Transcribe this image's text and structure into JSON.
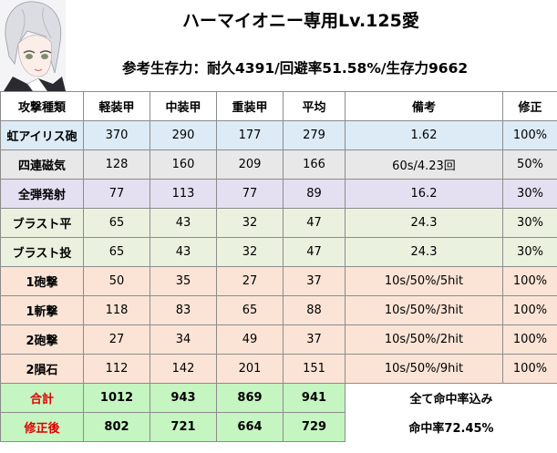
{
  "title": "ハーマイオニー専用Lv.125愛",
  "subtitle": "参考生存力：耐久4391/回避率51.58%/生存力9662",
  "headers": [
    "攻撃種類",
    "軽装甲",
    "中装甲",
    "重装甲",
    "平均",
    "備考",
    "修正"
  ],
  "rows": [
    {
      "name": "虹アイリス砲",
      "light": "370",
      "medium": "290",
      "heavy": "177",
      "avg": "279",
      "note": "1.62",
      "mod": "100%"
    },
    {
      "name": "四連磁気",
      "light": "128",
      "medium": "160",
      "heavy": "209",
      "avg": "166",
      "note": "60s/4.23回",
      "mod": "50%"
    },
    {
      "name": "全弾発射",
      "light": "77",
      "medium": "113",
      "heavy": "77",
      "avg": "89",
      "note": "16.2",
      "mod": "30%"
    },
    {
      "name": "ブラスト平",
      "light": "65",
      "medium": "43",
      "heavy": "32",
      "avg": "47",
      "note": "24.3",
      "mod": "30%"
    },
    {
      "name": "ブラスト投",
      "light": "65",
      "medium": "43",
      "heavy": "32",
      "avg": "47",
      "note": "24.3",
      "mod": "30%"
    },
    {
      "name": "1砲撃",
      "light": "50",
      "medium": "35",
      "heavy": "27",
      "avg": "37",
      "note": "10s/50%/5hit",
      "mod": "100%"
    },
    {
      "name": "1斬撃",
      "light": "118",
      "medium": "83",
      "heavy": "65",
      "avg": "88",
      "note": "10s/50%/3hit",
      "mod": "100%"
    },
    {
      "name": "2砲撃",
      "light": "27",
      "medium": "34",
      "heavy": "49",
      "avg": "37",
      "note": "10s/50%/2hit",
      "mod": "100%"
    },
    {
      "name": "2隕石",
      "light": "112",
      "medium": "142",
      "heavy": "201",
      "avg": "151",
      "note": "10s/50%/9hit",
      "mod": "100%"
    }
  ],
  "totals": [
    {
      "name": "合計",
      "light": "1012",
      "medium": "943",
      "heavy": "869",
      "avg": "941",
      "note": "全て命中率込み"
    },
    {
      "name": "修正後",
      "light": "802",
      "medium": "721",
      "heavy": "664",
      "avg": "729",
      "note": "命中率72.45%"
    }
  ],
  "colors": {
    "blue": "#dcebf6",
    "grey": "#e8e8e8",
    "lavender": "#e4e0f1",
    "green": "#ebf1df",
    "peach": "#fbe4d6",
    "total": "#c5f5c1",
    "total_label": "#e00000"
  }
}
